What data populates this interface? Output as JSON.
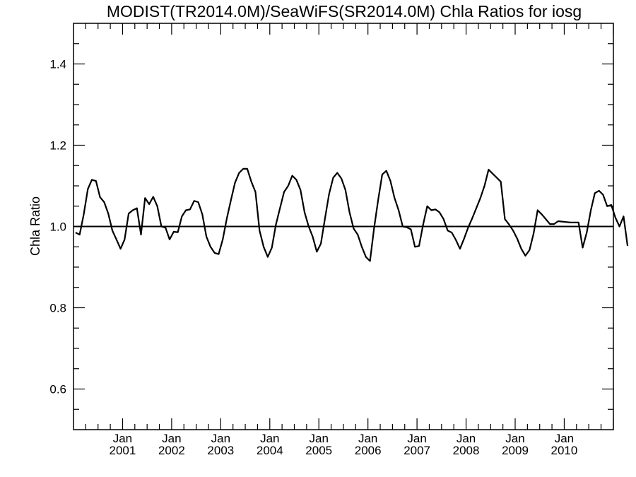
{
  "chart_data": {
    "type": "line",
    "title": "MODIST(TR2014.0M)/SeaWiFS(SR2014.0M)  Chla Ratios for iosg",
    "xlabel": "",
    "ylabel": "Chla Ratio",
    "ylim": [
      0.5,
      1.5
    ],
    "xlim": [
      "2000-01-01",
      "2010-12-31"
    ],
    "y_ticks": [
      "0.6",
      "0.8",
      "1.0",
      "1.2",
      "1.4"
    ],
    "x_ticks": [
      {
        "month": "Jan",
        "year": "2001"
      },
      {
        "month": "Jan",
        "year": "2002"
      },
      {
        "month": "Jan",
        "year": "2003"
      },
      {
        "month": "Jan",
        "year": "2004"
      },
      {
        "month": "Jan",
        "year": "2005"
      },
      {
        "month": "Jan",
        "year": "2006"
      },
      {
        "month": "Jan",
        "year": "2007"
      },
      {
        "month": "Jan",
        "year": "2008"
      },
      {
        "month": "Jan",
        "year": "2009"
      },
      {
        "month": "Jan",
        "year": "2010"
      }
    ],
    "reference_line": 1.0,
    "grid": false,
    "series": [
      {
        "color": "#000000",
        "start": "2000-01",
        "values": [
          0.985,
          0.98,
          1.03,
          1.092,
          1.115,
          1.112,
          1.072,
          1.06,
          1.032,
          0.99,
          0.968,
          0.945,
          0.968,
          1.032,
          1.04,
          1.045,
          0.98,
          1.07,
          1.055,
          1.073,
          1.05,
          1.0,
          0.997,
          0.968,
          0.987,
          0.986,
          1.025,
          1.04,
          1.042,
          1.063,
          1.06,
          1.03,
          0.975,
          0.95,
          0.935,
          0.932,
          0.968,
          1.02,
          1.065,
          1.108,
          1.132,
          1.142,
          1.142,
          1.11,
          1.085,
          0.99,
          0.95,
          0.925,
          0.948,
          1.005,
          1.045,
          1.085,
          1.1,
          1.125,
          1.115,
          1.09,
          1.035,
          1.0,
          0.975,
          0.938,
          0.958,
          1.02,
          1.08,
          1.12,
          1.132,
          1.118,
          1.09,
          1.035,
          0.995,
          0.98,
          0.95,
          0.925,
          0.915,
          0.995,
          1.065,
          1.128,
          1.137,
          1.112,
          1.07,
          1.04,
          1.0,
          0.998,
          0.993,
          0.95,
          0.952,
          1.005,
          1.05,
          1.04,
          1.042,
          1.035,
          1.018,
          0.99,
          0.985,
          0.967,
          0.945,
          0.97,
          0.997,
          1.02,
          1.045,
          1.07,
          1.1,
          1.14,
          1.13,
          1.12,
          1.11,
          1.018,
          1.005,
          0.99,
          0.97,
          0.945,
          0.928,
          0.942,
          0.982,
          1.04,
          1.03,
          1.018,
          1.006,
          1.006,
          1.013,
          1.012,
          1.011,
          1.01,
          1.01,
          1.01,
          0.948,
          0.985,
          1.04,
          1.082,
          1.088,
          1.078,
          1.05,
          1.053,
          1.022,
          1.0,
          1.025,
          0.952
        ]
      }
    ]
  }
}
